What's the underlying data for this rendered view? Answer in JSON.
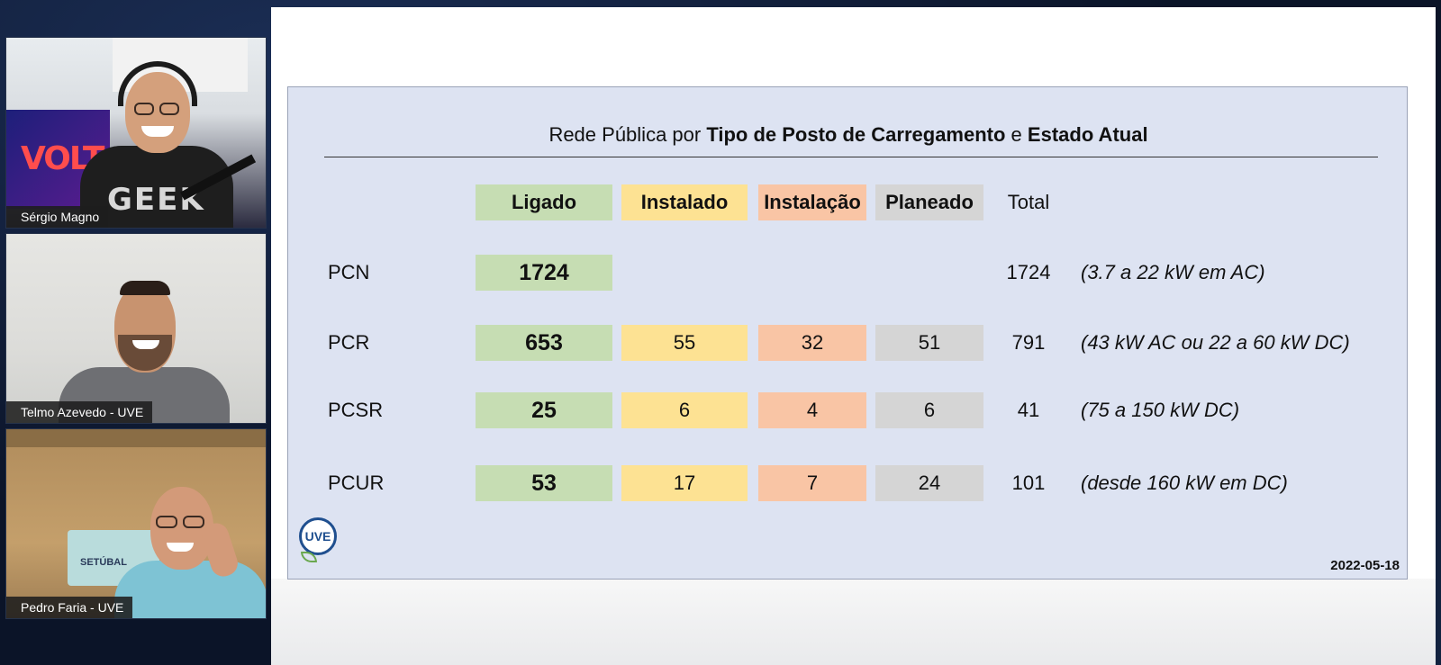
{
  "participants": [
    {
      "name": "Sérgio Magno",
      "banner_text": "VOLT",
      "shirt_text": "GEEK"
    },
    {
      "name": "Telmo Azevedo - UVE"
    },
    {
      "name": "Pedro Faria - UVE",
      "poster_text": "SETÚBAL"
    }
  ],
  "slide": {
    "title_parts": [
      "Rede Pública por ",
      "Tipo de Posto de Carregamento",
      " e ",
      "Estado Atual"
    ],
    "headers": {
      "ligado": "Ligado",
      "instalado": "Instalado",
      "instalacao": "Instalação",
      "planeado": "Planeado",
      "total": "Total"
    },
    "rows": [
      {
        "label": "PCN",
        "ligado": "1724",
        "instalado": "",
        "instalacao": "",
        "planeado": "",
        "total": "1724",
        "note": "(3.7 a 22 kW em AC)"
      },
      {
        "label": "PCR",
        "ligado": "653",
        "instalado": "55",
        "instalacao": "32",
        "planeado": "51",
        "total": "791",
        "note": "(43 kW AC ou 22 a 60 kW DC)"
      },
      {
        "label": "PCSR",
        "ligado": "25",
        "instalado": "6",
        "instalacao": "4",
        "planeado": "6",
        "total": "41",
        "note": "(75 a 150 kW DC)"
      },
      {
        "label": "PCUR",
        "ligado": "53",
        "instalado": "17",
        "instalacao": "7",
        "planeado": "24",
        "total": "101",
        "note": "(desde 160 kW em DC)"
      }
    ],
    "logo_text": "UVE",
    "date": "2022-05-18"
  },
  "colors": {
    "ligado": "#c6ddb3",
    "instalado": "#fde293",
    "instalacao": "#f9c5a5",
    "planeado": "#d5d5d5",
    "panel": "#dde3f2"
  }
}
